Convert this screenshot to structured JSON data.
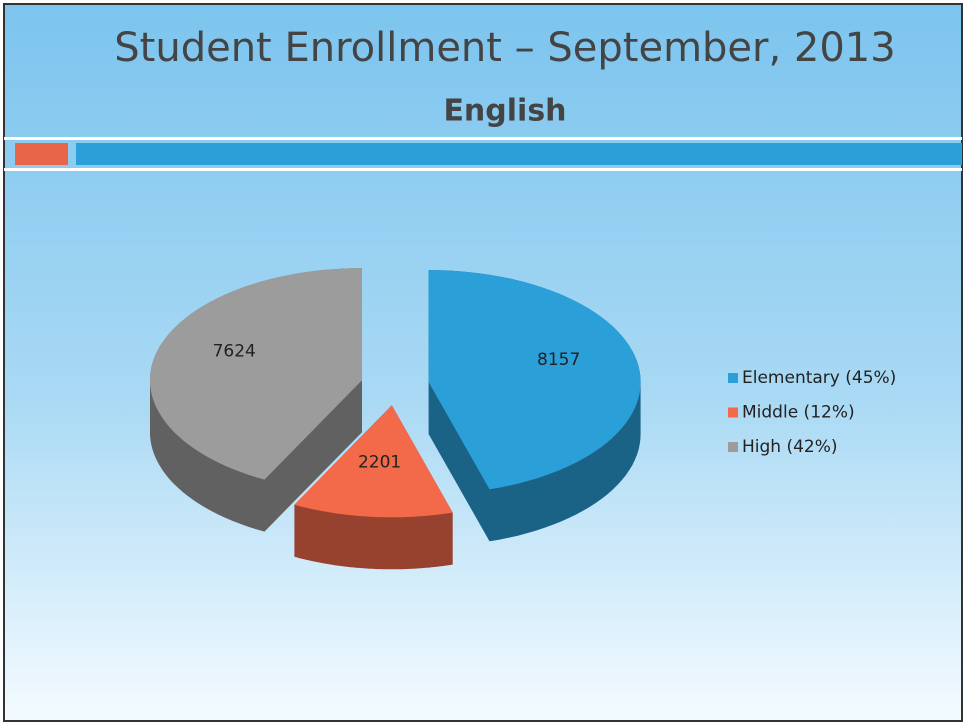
{
  "chart_data": {
    "type": "pie",
    "title": "Student Enrollment – September, 2013",
    "subtitle": "English",
    "categories": [
      "Elementary (45%)",
      "Middle (12%)",
      "High (42%)"
    ],
    "values": [
      8157,
      2201,
      7624
    ],
    "colors": [
      "#2a9fd8",
      "#f26a4a",
      "#9c9c9c"
    ],
    "exploded": true,
    "three_d": true,
    "legend": "right"
  }
}
